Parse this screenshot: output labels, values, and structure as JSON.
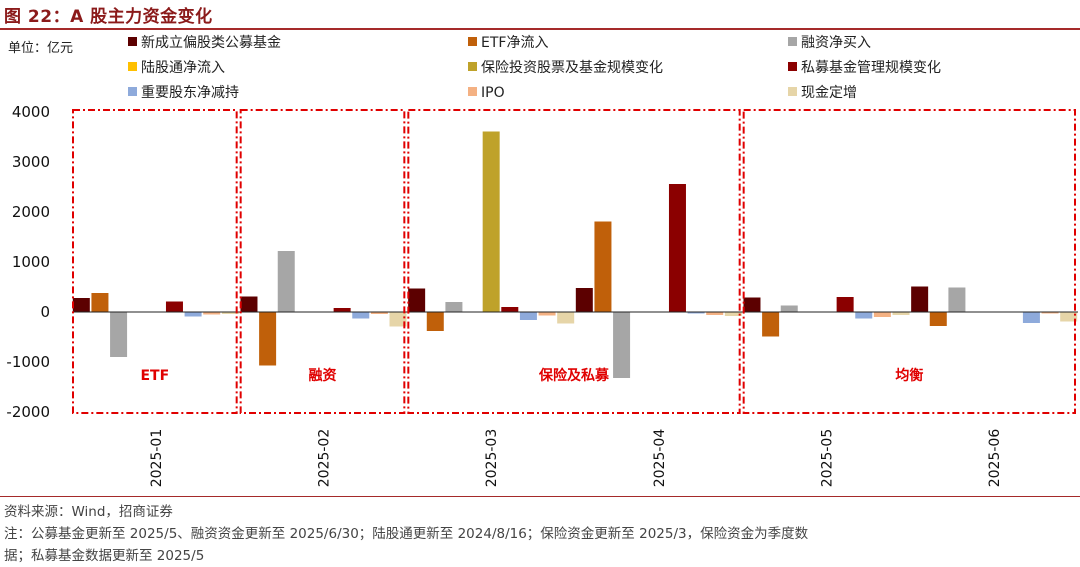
{
  "figure": {
    "title": "图 22：A 股主力资金变化",
    "unit": "单位：亿元"
  },
  "colors": {
    "title": "#8b1a1a",
    "rule": "#a52a2a",
    "box": "#e00000"
  },
  "chart_data": {
    "type": "bar",
    "title": "",
    "xlabel": "",
    "ylabel": "",
    "ylim": [
      -2000,
      4000
    ],
    "yticks": [
      -2000,
      -1000,
      0,
      1000,
      2000,
      3000,
      4000
    ],
    "ytick_labels": [
      "-2000",
      "-1000",
      "0",
      "1000",
      "2000",
      "3000",
      "4000"
    ],
    "categories": [
      "2025-01",
      "2025-02",
      "2025-03",
      "2025-04",
      "2025-05",
      "2025-06"
    ],
    "legend_position": "top",
    "grid": false,
    "series": [
      {
        "name": "新成立偏股类公募基金",
        "color": "#5c0000",
        "values": [
          280,
          310,
          470,
          480,
          290,
          510
        ]
      },
      {
        "name": "ETF净流入",
        "color": "#c0600a",
        "values": [
          380,
          -1070,
          -380,
          1810,
          -490,
          -280
        ]
      },
      {
        "name": "融资净买入",
        "color": "#a6a6a6",
        "values": [
          -900,
          1220,
          200,
          -1320,
          130,
          490
        ]
      },
      {
        "name": "陆股通净流入",
        "color": "#ffc000",
        "values": [
          null,
          null,
          null,
          null,
          null,
          null
        ]
      },
      {
        "name": "保险投资股票及基金规模变化",
        "color": "#bfa22a",
        "values": [
          null,
          null,
          3610,
          null,
          null,
          null
        ]
      },
      {
        "name": "私募基金管理规模变化",
        "color": "#8b0000",
        "values": [
          210,
          80,
          100,
          2560,
          300,
          null
        ]
      },
      {
        "name": "重要股东净减持",
        "color": "#8eaadb",
        "values": [
          -90,
          -130,
          -160,
          -30,
          -130,
          -220
        ]
      },
      {
        "name": "IPO",
        "color": "#f4b183",
        "values": [
          -50,
          -40,
          -70,
          -60,
          -100,
          -30
        ]
      },
      {
        "name": "现金定增",
        "color": "#e6d5a8",
        "values": [
          -40,
          -290,
          -230,
          -80,
          -60,
          -190
        ]
      }
    ],
    "annotations": [
      {
        "label": "ETF",
        "from": 0,
        "to": 0
      },
      {
        "label": "融资",
        "from": 1,
        "to": 1
      },
      {
        "label": "保险及私募",
        "from": 2,
        "to": 3
      },
      {
        "label": "均衡",
        "from": 4,
        "to": 5
      }
    ]
  },
  "notes": {
    "source": "资料来源：Wind，招商证券",
    "note_line1": "注：公募基金更新至 2025/5、融资资金更新至 2025/6/30；陆股通更新至 2024/8/16；保险资金更新至 2025/3，保险资金为季度数",
    "note_line2": "据；私募基金数据更新至 2025/5"
  }
}
